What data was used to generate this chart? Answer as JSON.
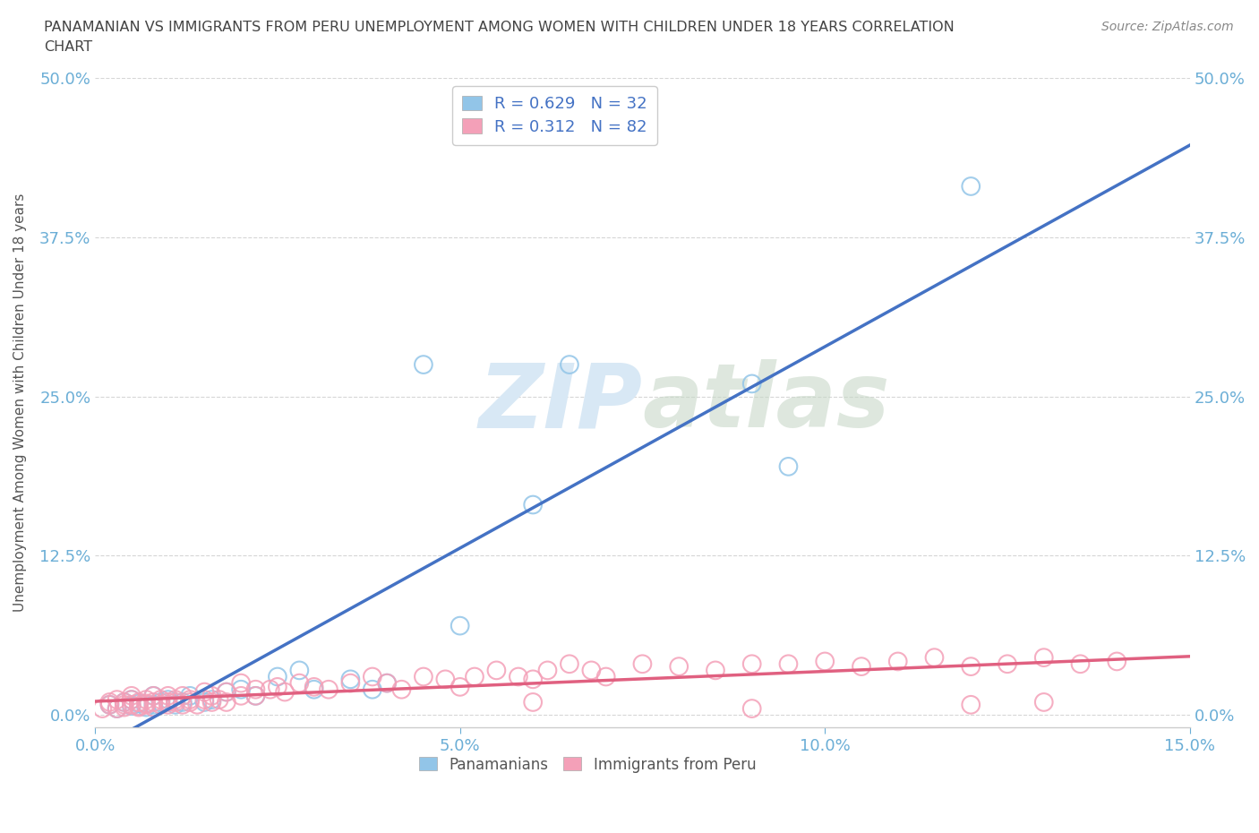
{
  "title_line1": "PANAMANIAN VS IMMIGRANTS FROM PERU UNEMPLOYMENT AMONG WOMEN WITH CHILDREN UNDER 18 YEARS CORRELATION",
  "title_line2": "CHART",
  "source": "Source: ZipAtlas.com",
  "ylabel": "Unemployment Among Women with Children Under 18 years",
  "xmin": 0.0,
  "xmax": 0.15,
  "ymin": -0.01,
  "ymax": 0.5,
  "yticks": [
    0.0,
    0.125,
    0.25,
    0.375,
    0.5
  ],
  "xticks": [
    0.0,
    0.05,
    0.1,
    0.15
  ],
  "pan_color": "#92C5E8",
  "peru_color": "#F4A0B8",
  "pan_line_color": "#4472C4",
  "peru_line_color": "#E06080",
  "pan_R": 0.629,
  "pan_N": 32,
  "peru_R": 0.312,
  "peru_N": 82,
  "background_color": "#FFFFFF",
  "tick_color": "#6BAED6",
  "legend_R_color": "#4472C4",
  "watermark_color": "#D8E8F5",
  "pan_x": [
    0.002,
    0.003,
    0.004,
    0.005,
    0.005,
    0.006,
    0.007,
    0.008,
    0.008,
    0.009,
    0.01,
    0.011,
    0.012,
    0.013,
    0.015,
    0.016,
    0.018,
    0.02,
    0.022,
    0.025,
    0.028,
    0.03,
    0.035,
    0.038,
    0.04,
    0.045,
    0.05,
    0.06,
    0.065,
    0.09,
    0.095,
    0.12
  ],
  "pan_y": [
    0.008,
    0.005,
    0.01,
    0.012,
    0.007,
    0.009,
    0.006,
    0.015,
    0.008,
    0.01,
    0.012,
    0.008,
    0.01,
    0.015,
    0.01,
    0.012,
    0.018,
    0.02,
    0.015,
    0.03,
    0.035,
    0.02,
    0.028,
    0.02,
    0.025,
    0.275,
    0.07,
    0.165,
    0.275,
    0.26,
    0.195,
    0.415
  ],
  "peru_x": [
    0.001,
    0.002,
    0.002,
    0.003,
    0.003,
    0.004,
    0.004,
    0.004,
    0.005,
    0.005,
    0.005,
    0.006,
    0.006,
    0.006,
    0.007,
    0.007,
    0.007,
    0.008,
    0.008,
    0.008,
    0.009,
    0.009,
    0.01,
    0.01,
    0.01,
    0.011,
    0.011,
    0.012,
    0.012,
    0.013,
    0.013,
    0.014,
    0.015,
    0.015,
    0.016,
    0.016,
    0.017,
    0.018,
    0.018,
    0.02,
    0.02,
    0.022,
    0.022,
    0.024,
    0.025,
    0.026,
    0.028,
    0.03,
    0.032,
    0.035,
    0.038,
    0.04,
    0.042,
    0.045,
    0.048,
    0.05,
    0.052,
    0.055,
    0.058,
    0.06,
    0.062,
    0.065,
    0.068,
    0.07,
    0.075,
    0.08,
    0.085,
    0.09,
    0.095,
    0.1,
    0.105,
    0.11,
    0.115,
    0.12,
    0.125,
    0.13,
    0.135,
    0.14,
    0.13,
    0.12,
    0.09,
    0.06
  ],
  "peru_y": [
    0.005,
    0.008,
    0.01,
    0.005,
    0.012,
    0.008,
    0.01,
    0.006,
    0.008,
    0.012,
    0.015,
    0.007,
    0.01,
    0.006,
    0.009,
    0.012,
    0.008,
    0.006,
    0.015,
    0.01,
    0.012,
    0.008,
    0.01,
    0.015,
    0.008,
    0.012,
    0.01,
    0.008,
    0.015,
    0.012,
    0.01,
    0.008,
    0.012,
    0.018,
    0.01,
    0.015,
    0.012,
    0.01,
    0.018,
    0.015,
    0.025,
    0.02,
    0.015,
    0.02,
    0.022,
    0.018,
    0.025,
    0.022,
    0.02,
    0.025,
    0.03,
    0.025,
    0.02,
    0.03,
    0.028,
    0.022,
    0.03,
    0.035,
    0.03,
    0.028,
    0.035,
    0.04,
    0.035,
    0.03,
    0.04,
    0.038,
    0.035,
    0.04,
    0.04,
    0.042,
    0.038,
    0.042,
    0.045,
    0.038,
    0.04,
    0.045,
    0.04,
    0.042,
    0.01,
    0.008,
    0.005,
    0.01
  ]
}
